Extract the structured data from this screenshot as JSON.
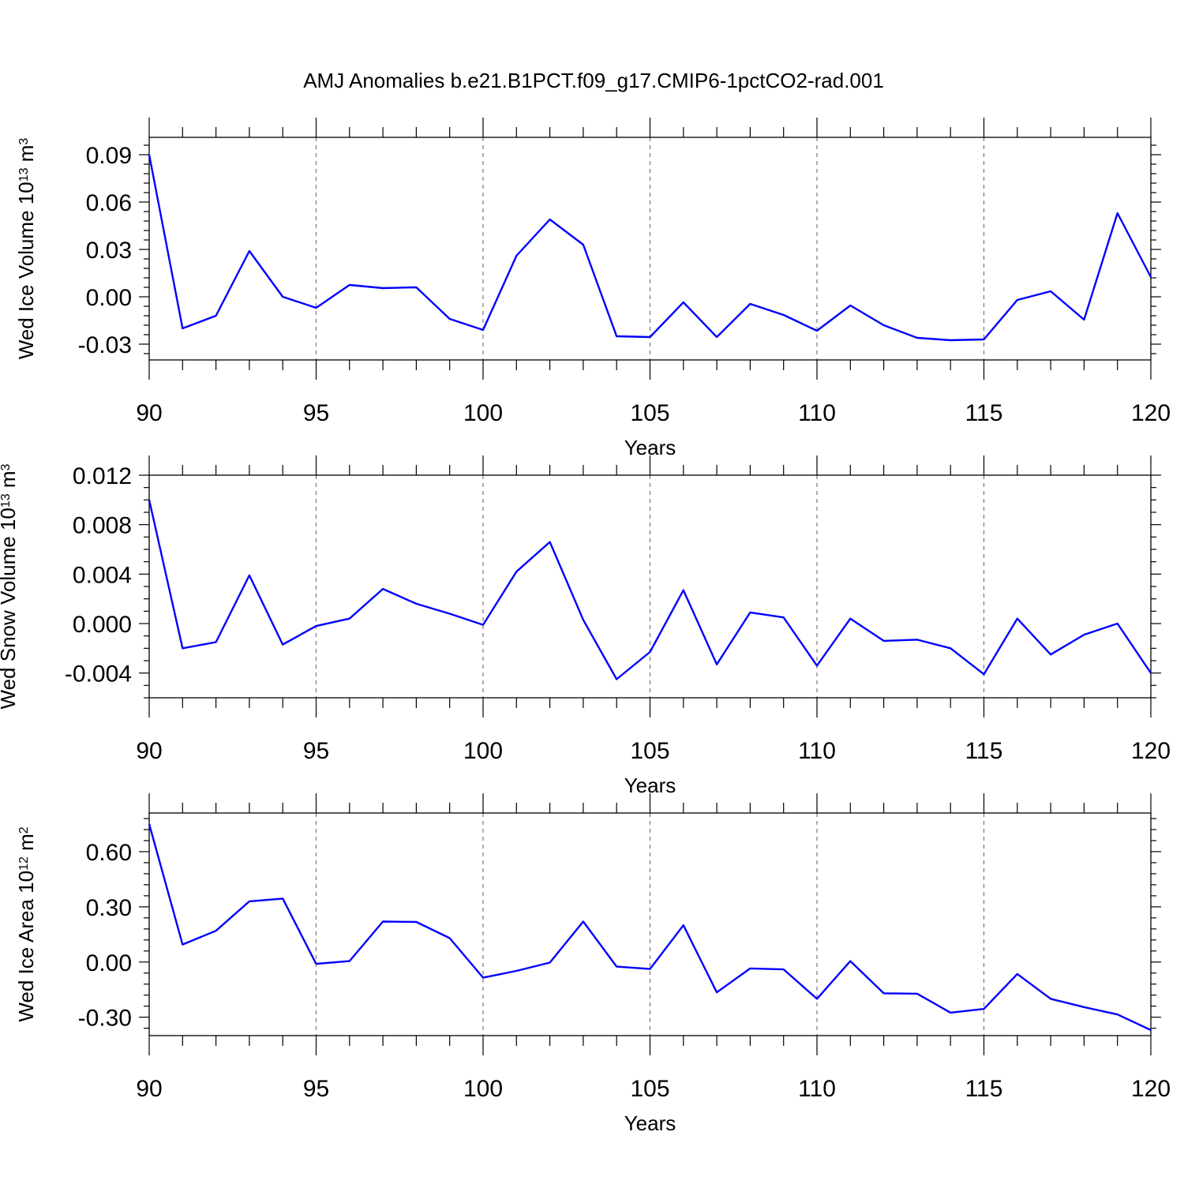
{
  "title": "AMJ Anomalies b.e21.B1PCT.f09_g17.CMIP6-1pctCO2-rad.001",
  "series_color": "#0000ff",
  "chart_data": [
    {
      "type": "line",
      "ylabel": "Wed Ice Volume 10",
      "ylabel_sup": "13",
      "ylabel_unit": " m",
      "ylabel_unit_sup": "3",
      "xlabel": "Years",
      "xlim": [
        90,
        120
      ],
      "ylim": [
        -0.04,
        0.101
      ],
      "x_ticks": [
        90,
        95,
        100,
        105,
        110,
        115,
        120
      ],
      "x_tick_labels": [
        "90",
        "95",
        "100",
        "105",
        "110",
        "115",
        "120"
      ],
      "y_ticks": [
        -0.03,
        0.0,
        0.03,
        0.06,
        0.09
      ],
      "y_tick_labels": [
        "-0.03",
        "0.00",
        "0.03",
        "0.06",
        "0.09"
      ],
      "y_minor_step": 0.006,
      "grid": "dashed vertical at major x ticks",
      "x": [
        90,
        91,
        92,
        93,
        94,
        95,
        96,
        97,
        98,
        99,
        100,
        101,
        102,
        103,
        104,
        105,
        106,
        107,
        108,
        109,
        110,
        111,
        112,
        113,
        114,
        115,
        116,
        117,
        118,
        119,
        120
      ],
      "values": [
        0.09,
        -0.02,
        -0.012,
        0.029,
        0.0,
        -0.007,
        0.0075,
        0.0055,
        0.006,
        -0.014,
        -0.021,
        0.026,
        0.049,
        0.033,
        -0.025,
        -0.0255,
        -0.0035,
        -0.0255,
        -0.0045,
        -0.0115,
        -0.0215,
        -0.0055,
        -0.018,
        -0.026,
        -0.0275,
        -0.027,
        -0.002,
        0.0035,
        -0.0145,
        0.053,
        0.0125
      ]
    },
    {
      "type": "line",
      "ylabel": "Wed Snow Volume 10",
      "ylabel_sup": "13",
      "ylabel_unit": " m",
      "ylabel_unit_sup": "3",
      "xlabel": "Years",
      "xlim": [
        90,
        120
      ],
      "ylim": [
        -0.006,
        0.012
      ],
      "x_ticks": [
        90,
        95,
        100,
        105,
        110,
        115,
        120
      ],
      "x_tick_labels": [
        "90",
        "95",
        "100",
        "105",
        "110",
        "115",
        "120"
      ],
      "y_ticks": [
        -0.004,
        0.0,
        0.004,
        0.008,
        0.012
      ],
      "y_tick_labels": [
        "-0.004",
        "0.000",
        "0.004",
        "0.008",
        "0.012"
      ],
      "y_minor_step": 0.001,
      "grid": "dashed vertical at major x ticks",
      "x": [
        90,
        91,
        92,
        93,
        94,
        95,
        96,
        97,
        98,
        99,
        100,
        101,
        102,
        103,
        104,
        105,
        106,
        107,
        108,
        109,
        110,
        111,
        112,
        113,
        114,
        115,
        116,
        117,
        118,
        119,
        120
      ],
      "values": [
        0.01,
        -0.002,
        -0.0015,
        0.0039,
        -0.0017,
        -0.0002,
        0.0004,
        0.0028,
        0.0016,
        0.0008,
        -0.0001,
        0.0042,
        0.0066,
        0.0003,
        -0.0045,
        -0.0023,
        0.0027,
        -0.0033,
        0.0009,
        0.0005,
        -0.0034,
        0.0004,
        -0.0014,
        -0.0013,
        -0.002,
        -0.0041,
        0.0004,
        -0.0025,
        -0.0009,
        0.0,
        -0.004
      ]
    },
    {
      "type": "line",
      "ylabel": "Wed Ice Area 10",
      "ylabel_sup": "12",
      "ylabel_unit": " m",
      "ylabel_unit_sup": "2",
      "xlabel": "Years",
      "xlim": [
        90,
        120
      ],
      "ylim": [
        -0.4,
        0.81
      ],
      "x_ticks": [
        90,
        95,
        100,
        105,
        110,
        115,
        120
      ],
      "x_tick_labels": [
        "90",
        "95",
        "100",
        "105",
        "110",
        "115",
        "120"
      ],
      "y_ticks": [
        -0.3,
        0.0,
        0.3,
        0.6
      ],
      "y_tick_labels": [
        "-0.30",
        "0.00",
        "0.30",
        "0.60"
      ],
      "y_minor_step": 0.06,
      "grid": "dashed vertical at major x ticks",
      "x": [
        90,
        91,
        92,
        93,
        94,
        95,
        96,
        97,
        98,
        99,
        100,
        101,
        102,
        103,
        104,
        105,
        106,
        107,
        108,
        109,
        110,
        111,
        112,
        113,
        114,
        115,
        116,
        117,
        118,
        119,
        120
      ],
      "values": [
        0.75,
        0.095,
        0.17,
        0.33,
        0.345,
        -0.01,
        0.005,
        0.22,
        0.218,
        0.13,
        -0.085,
        -0.048,
        -0.003,
        0.22,
        -0.025,
        -0.038,
        0.2,
        -0.165,
        -0.035,
        -0.04,
        -0.2,
        0.005,
        -0.17,
        -0.172,
        -0.275,
        -0.255,
        -0.065,
        -0.2,
        -0.245,
        -0.285,
        -0.37
      ]
    }
  ]
}
